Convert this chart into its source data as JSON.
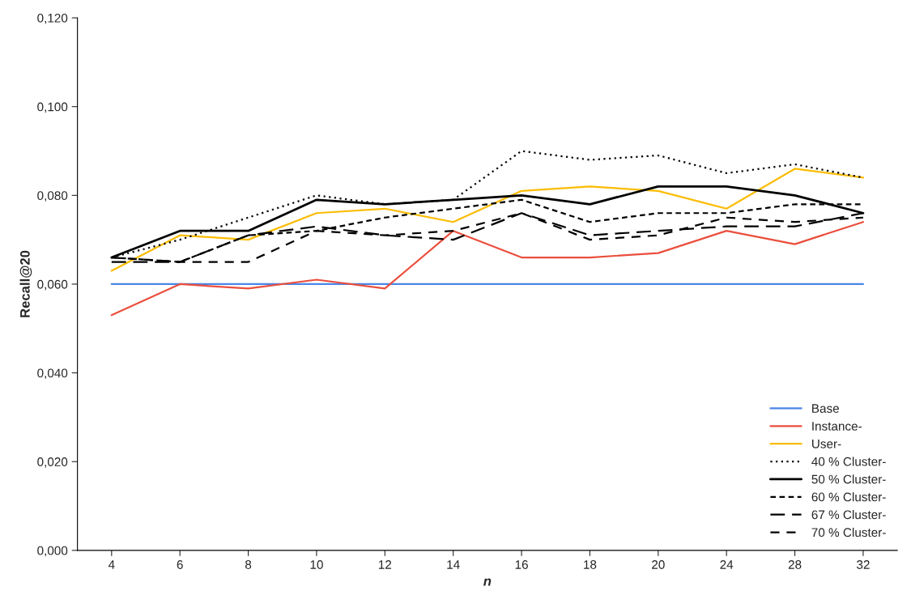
{
  "chart_data": {
    "type": "line",
    "xlabel": "n",
    "ylabel": "Recall@20",
    "categories": [
      "4",
      "6",
      "8",
      "10",
      "12",
      "14",
      "16",
      "18",
      "20",
      "24",
      "28",
      "32"
    ],
    "series": [
      {
        "name": "Base",
        "color": "#4a86e8",
        "line_style": "solid",
        "values": [
          0.06,
          0.06,
          0.06,
          0.06,
          0.06,
          0.06,
          0.06,
          0.06,
          0.06,
          0.06,
          0.06,
          0.06
        ]
      },
      {
        "name": "Instance-",
        "color": "#ea4f3d",
        "line_style": "solid",
        "values": [
          0.053,
          0.06,
          0.059,
          0.061,
          0.059,
          0.072,
          0.066,
          0.066,
          0.067,
          0.072,
          0.069,
          0.074
        ]
      },
      {
        "name": "User-",
        "color": "#fbbc04",
        "line_style": "solid",
        "values": [
          0.063,
          0.071,
          0.07,
          0.076,
          0.077,
          0.074,
          0.081,
          0.082,
          0.081,
          0.077,
          0.086,
          0.084
        ]
      },
      {
        "name": "40 % Cluster-",
        "color": "#000000",
        "line_style": "dotted",
        "values": [
          0.066,
          0.07,
          0.075,
          0.08,
          0.078,
          0.079,
          0.09,
          0.088,
          0.089,
          0.085,
          0.087,
          0.084
        ]
      },
      {
        "name": "50 % Cluster-",
        "color": "#000000",
        "line_style": "solid",
        "values": [
          0.066,
          0.072,
          0.072,
          0.079,
          0.078,
          0.079,
          0.08,
          0.078,
          0.082,
          0.082,
          0.08,
          0.076
        ]
      },
      {
        "name": "60 % Cluster-",
        "color": "#000000",
        "line_style": "dashed",
        "values": [
          0.066,
          0.065,
          0.071,
          0.072,
          0.075,
          0.077,
          0.079,
          0.074,
          0.076,
          0.076,
          0.078,
          0.078
        ]
      },
      {
        "name": "67 % Cluster-",
        "color": "#000000",
        "line_style": "dashed",
        "values": [
          0.065,
          0.065,
          0.071,
          0.073,
          0.071,
          0.07,
          0.076,
          0.071,
          0.072,
          0.073,
          0.073,
          0.076
        ]
      },
      {
        "name": "70 % Cluster-",
        "color": "#000000",
        "line_style": "dashed",
        "values": [
          0.066,
          0.065,
          0.065,
          0.072,
          0.071,
          0.072,
          0.076,
          0.07,
          0.071,
          0.075,
          0.074,
          0.075
        ]
      }
    ],
    "ylim": [
      0,
      0.12
    ],
    "yticks": [
      {
        "value": 0,
        "label": "0,000"
      },
      {
        "value": 0.02,
        "label": "0,020"
      },
      {
        "value": 0.04,
        "label": "0,040"
      },
      {
        "value": 0.06,
        "label": "0,060"
      },
      {
        "value": 0.08,
        "label": "0,080"
      },
      {
        "value": 0.1,
        "label": "0,100"
      },
      {
        "value": 0.12,
        "label": "0,120"
      }
    ],
    "grid": false,
    "legend": "bottom right",
    "marker": "none"
  }
}
